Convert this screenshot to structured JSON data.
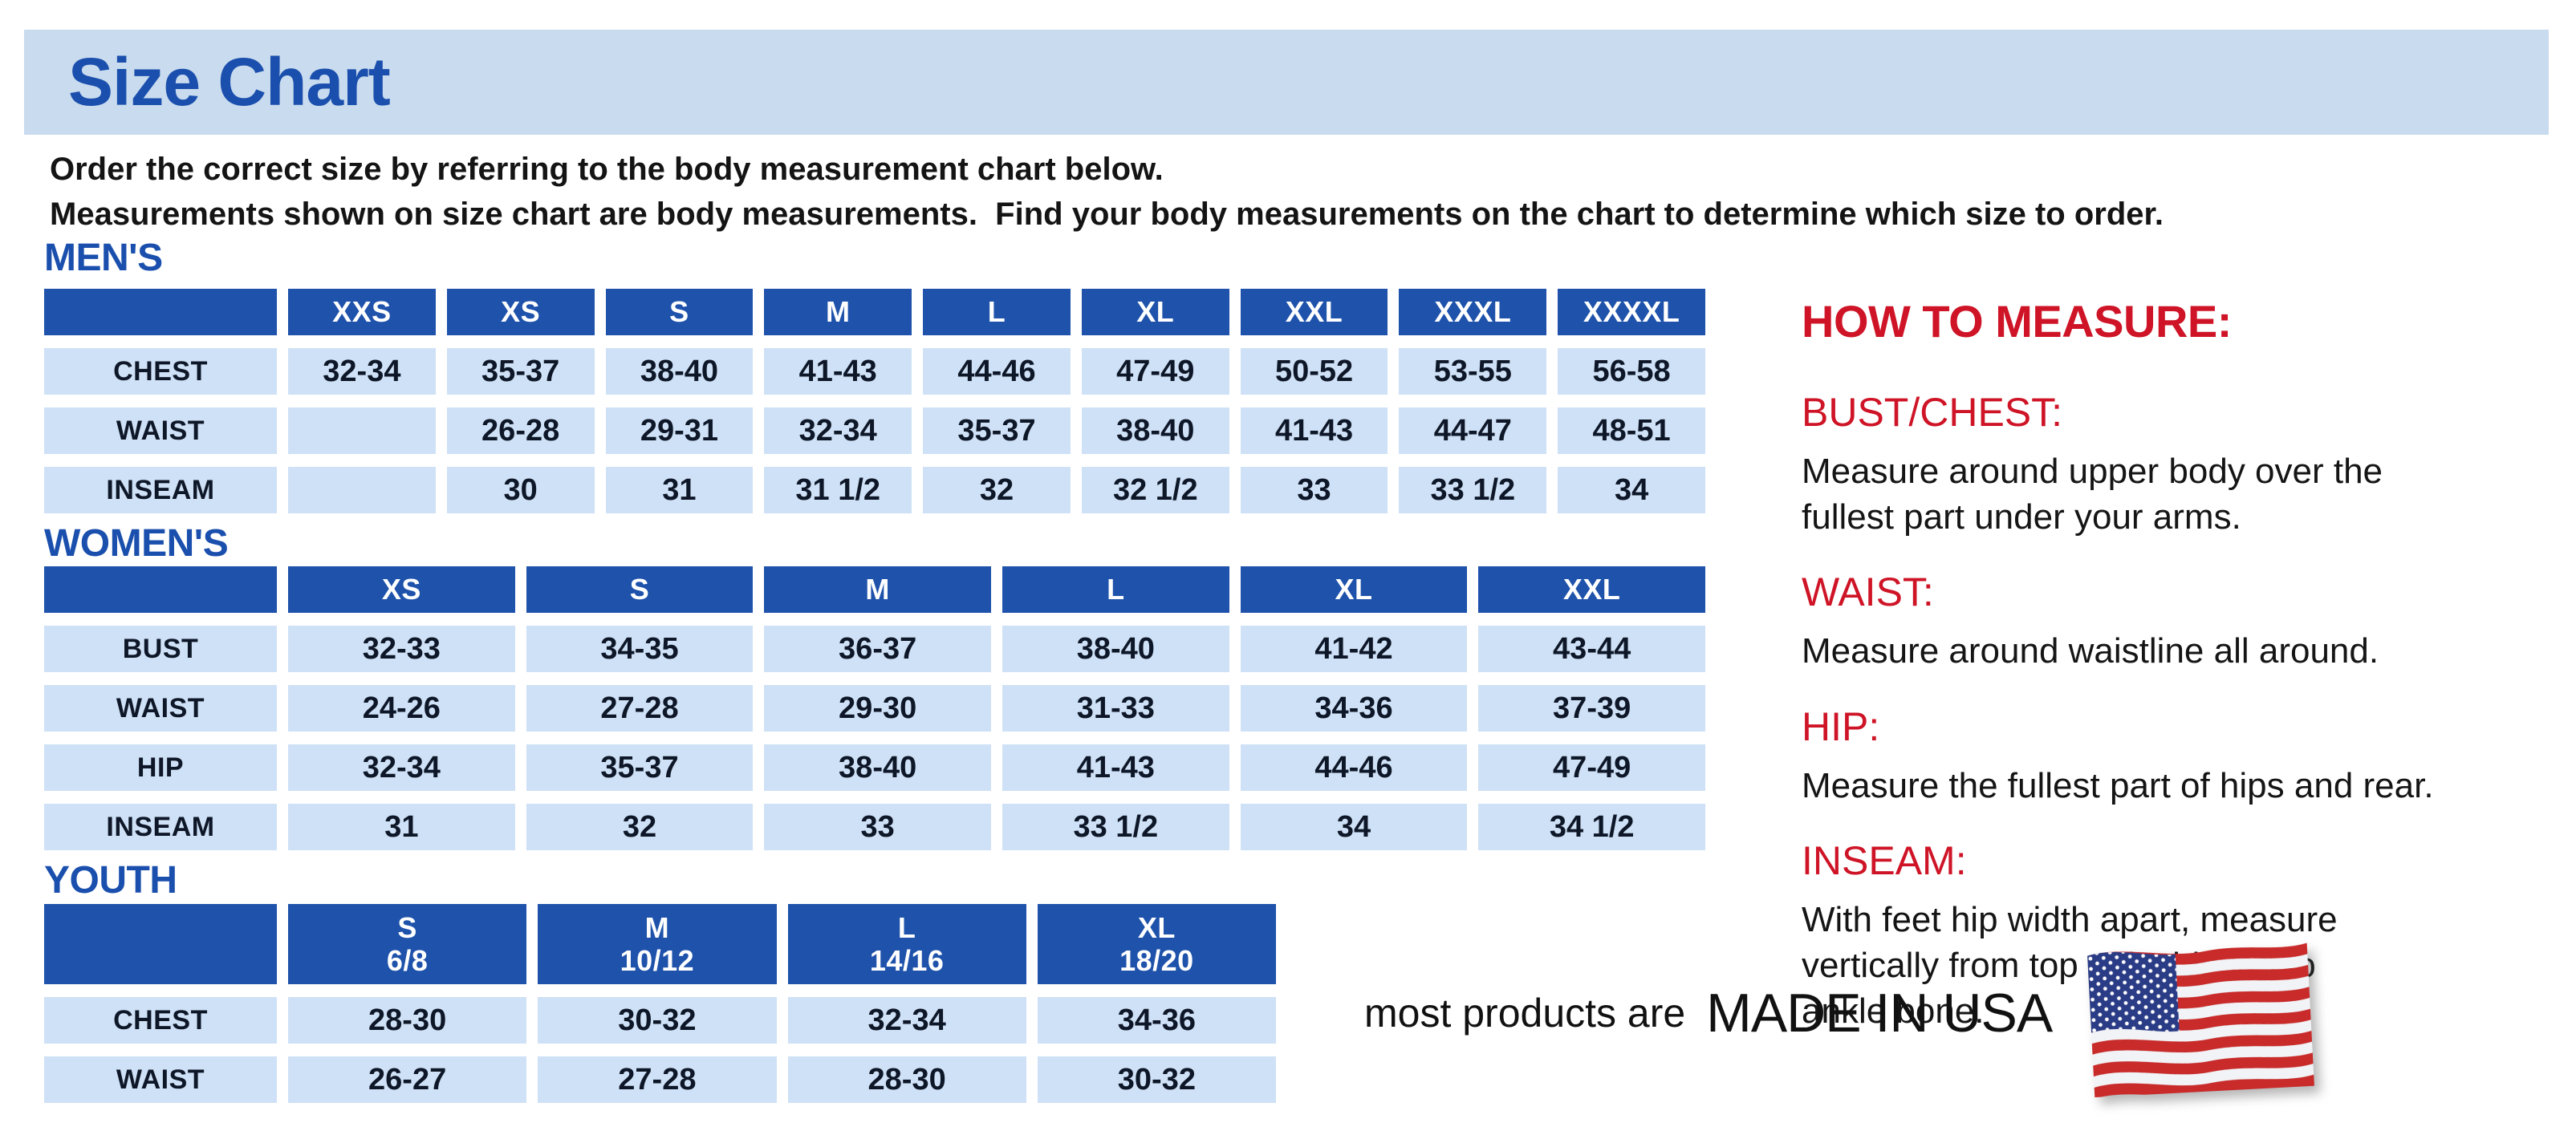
{
  "page": {
    "title": "Size Chart",
    "intro_line1": "Order the correct size by referring to the body measurement chart below.",
    "intro_line2": "Measurements shown on size chart are body measurements.  Find your body measurements on the chart to determine which size to order."
  },
  "colors": {
    "banner_bg": "#c9dbee",
    "heading_blue": "#1a4fad",
    "th_bg": "#1e52ab",
    "th_text": "#ffffff",
    "cell_bg": "#cfe1f6",
    "cell_text": "#0e1728",
    "red": "#ce1426",
    "text": "#141414",
    "flag_red": "#c92a2a",
    "flag_blue": "#2b3c86"
  },
  "tables": [
    {
      "id": "mens",
      "heading": "MEN'S",
      "columns": [
        "",
        "XXS",
        "XS",
        "S",
        "M",
        "L",
        "XL",
        "XXL",
        "XXXL",
        "XXXXL"
      ],
      "rows": [
        {
          "label": "CHEST",
          "values": [
            "32-34",
            "35-37",
            "38-40",
            "41-43",
            "44-46",
            "47-49",
            "50-52",
            "53-55",
            "56-58"
          ]
        },
        {
          "label": "WAIST",
          "values": [
            "",
            "26-28",
            "29-31",
            "32-34",
            "35-37",
            "38-40",
            "41-43",
            "44-47",
            "48-51"
          ]
        },
        {
          "label": "INSEAM",
          "values": [
            "",
            "30",
            "31",
            "31 1/2",
            "32",
            "32 1/2",
            "33",
            "33 1/2",
            "34"
          ]
        }
      ]
    },
    {
      "id": "womens",
      "heading": "WOMEN'S",
      "columns": [
        "",
        "XS",
        "S",
        "M",
        "L",
        "XL",
        "XXL"
      ],
      "rows": [
        {
          "label": "BUST",
          "values": [
            "32-33",
            "34-35",
            "36-37",
            "38-40",
            "41-42",
            "43-44"
          ]
        },
        {
          "label": "WAIST",
          "values": [
            "24-26",
            "27-28",
            "29-30",
            "31-33",
            "34-36",
            "37-39"
          ]
        },
        {
          "label": "HIP",
          "values": [
            "32-34",
            "35-37",
            "38-40",
            "41-43",
            "44-46",
            "47-49"
          ]
        },
        {
          "label": "INSEAM",
          "values": [
            "31",
            "32",
            "33",
            "33 1/2",
            "34",
            "34 1/2"
          ]
        }
      ]
    },
    {
      "id": "youth",
      "heading": "YOUTH",
      "columns": [
        "",
        "S\n6/8",
        "M\n10/12",
        "L\n14/16",
        "XL\n18/20"
      ],
      "rows": [
        {
          "label": "CHEST",
          "values": [
            "28-30",
            "30-32",
            "32-34",
            "34-36"
          ]
        },
        {
          "label": "WAIST",
          "values": [
            "26-27",
            "27-28",
            "28-30",
            "30-32"
          ]
        }
      ]
    }
  ],
  "how_to_measure": {
    "title": "HOW TO MEASURE:",
    "items": [
      {
        "label": "BUST/CHEST:",
        "text": "Measure around upper body over the\nfullest part under your arms."
      },
      {
        "label": "WAIST:",
        "text": "Measure around waistline all around."
      },
      {
        "label": "HIP:",
        "text": "Measure the fullest part of hips and rear."
      },
      {
        "label": "INSEAM:",
        "text": "With feet hip width apart, measure\nvertically from top of inside leg to\nankle bone."
      }
    ]
  },
  "footer": {
    "prefix": "most products are",
    "emphasis": "MADE IN USA",
    "flag_icon": "usa-flag-icon"
  }
}
